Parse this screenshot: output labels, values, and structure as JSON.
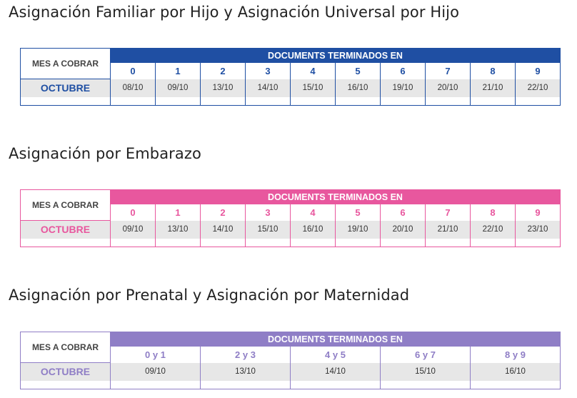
{
  "common": {
    "mes_label": "MES A COBRAR",
    "doc_label": "DOCUMENTS TERMINADOS EN",
    "month": "OCTUBRE"
  },
  "sections": [
    {
      "title": "Asignación Familiar por Hijo y Asignación Universal por Hijo",
      "color": "#1f4fa3",
      "columns": [
        {
          "digit": "0",
          "date": "08/10"
        },
        {
          "digit": "1",
          "date": "09/10"
        },
        {
          "digit": "2",
          "date": "13/10"
        },
        {
          "digit": "3",
          "date": "14/10"
        },
        {
          "digit": "4",
          "date": "15/10"
        },
        {
          "digit": "5",
          "date": "16/10"
        },
        {
          "digit": "6",
          "date": "19/10"
        },
        {
          "digit": "7",
          "date": "20/10"
        },
        {
          "digit": "8",
          "date": "21/10"
        },
        {
          "digit": "9",
          "date": "22/10"
        }
      ]
    },
    {
      "title": "Asignación por Embarazo",
      "color": "#e8579e",
      "columns": [
        {
          "digit": "0",
          "date": "09/10"
        },
        {
          "digit": "1",
          "date": "13/10"
        },
        {
          "digit": "2",
          "date": "14/10"
        },
        {
          "digit": "3",
          "date": "15/10"
        },
        {
          "digit": "4",
          "date": "16/10"
        },
        {
          "digit": "5",
          "date": "19/10"
        },
        {
          "digit": "6",
          "date": "20/10"
        },
        {
          "digit": "7",
          "date": "21/10"
        },
        {
          "digit": "8",
          "date": "22/10"
        },
        {
          "digit": "9",
          "date": "23/10"
        }
      ]
    },
    {
      "title": "Asignación por Prenatal y Asignación por Maternidad",
      "color": "#8f7ec6",
      "columns": [
        {
          "digit": "0 y 1",
          "date": "09/10"
        },
        {
          "digit": "2 y 3",
          "date": "13/10"
        },
        {
          "digit": "4 y 5",
          "date": "14/10"
        },
        {
          "digit": "6 y 7",
          "date": "15/10"
        },
        {
          "digit": "8 y 9",
          "date": "16/10"
        }
      ]
    }
  ]
}
